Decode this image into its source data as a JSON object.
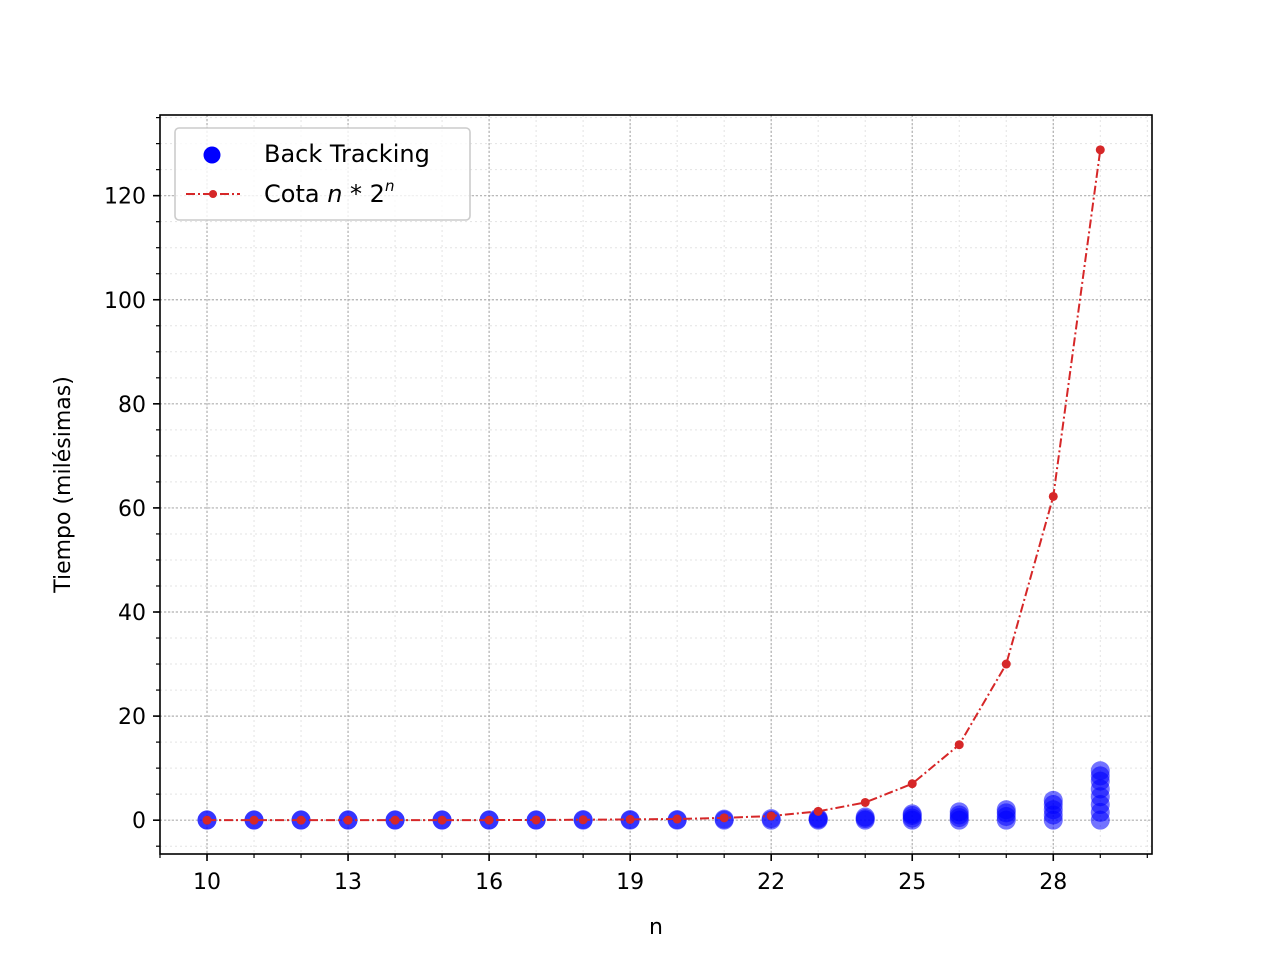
{
  "chart_data": {
    "type": "scatter",
    "xlabel": "n",
    "ylabel": "Tiempo (milésimas)",
    "xlim": [
      9,
      30.1
    ],
    "ylim": [
      -6.5,
      135.5
    ],
    "xticks": [
      10,
      13,
      16,
      19,
      22,
      25,
      28
    ],
    "xtick_labels": [
      "10",
      "13",
      "16",
      "19",
      "22",
      "25",
      "28"
    ],
    "yticks": [
      0,
      20,
      40,
      60,
      80,
      100,
      120
    ],
    "ytick_labels": [
      "0",
      "20",
      "40",
      "60",
      "80",
      "100",
      "120"
    ],
    "grid": true,
    "legend_position": "upper-left",
    "series": [
      {
        "name": "Back Tracking",
        "kind": "scatter",
        "color": "#0000ff",
        "points": [
          [
            10,
            0.0
          ],
          [
            10,
            0.05
          ],
          [
            11,
            0.0
          ],
          [
            11,
            0.05
          ],
          [
            12,
            0.0
          ],
          [
            12,
            0.05
          ],
          [
            13,
            0.0
          ],
          [
            13,
            0.05
          ],
          [
            14,
            0.0
          ],
          [
            14,
            0.05
          ],
          [
            15,
            0.0
          ],
          [
            15,
            0.05
          ],
          [
            16,
            0.0
          ],
          [
            16,
            0.05
          ],
          [
            17,
            0.0
          ],
          [
            17,
            0.05
          ],
          [
            18,
            0.0
          ],
          [
            18,
            0.1
          ],
          [
            19,
            0.0
          ],
          [
            19,
            0.1
          ],
          [
            20,
            0.0
          ],
          [
            20,
            0.1
          ],
          [
            21,
            0.0
          ],
          [
            21,
            0.2
          ],
          [
            22,
            0.0
          ],
          [
            22,
            0.3
          ],
          [
            23,
            0.0
          ],
          [
            23,
            0.2
          ],
          [
            23,
            0.4
          ],
          [
            24,
            0.0
          ],
          [
            24,
            0.3
          ],
          [
            24,
            0.6
          ],
          [
            25,
            0.0
          ],
          [
            25,
            0.4
          ],
          [
            25,
            0.9
          ],
          [
            25,
            1.2
          ],
          [
            26,
            0.0
          ],
          [
            26,
            0.5
          ],
          [
            26,
            1.0
          ],
          [
            26,
            1.6
          ],
          [
            27,
            0.0
          ],
          [
            27,
            0.7
          ],
          [
            27,
            1.4
          ],
          [
            27,
            2.0
          ],
          [
            28,
            0.0
          ],
          [
            28,
            1.0
          ],
          [
            28,
            2.0
          ],
          [
            28,
            3.0
          ],
          [
            28,
            3.8
          ],
          [
            29,
            0.0
          ],
          [
            29,
            1.5
          ],
          [
            29,
            3.0
          ],
          [
            29,
            4.5
          ],
          [
            29,
            6.0
          ],
          [
            29,
            7.5
          ],
          [
            29,
            8.5
          ],
          [
            29,
            9.5
          ]
        ]
      },
      {
        "name": "Cota n * 2^n",
        "legend_prefix": "Cota ",
        "kind": "line",
        "line_style": "dash-dot",
        "color": "#d62728",
        "x": [
          10,
          11,
          12,
          13,
          14,
          15,
          16,
          17,
          18,
          19,
          20,
          21,
          22,
          23,
          24,
          25,
          26,
          27,
          28,
          29
        ],
        "y": [
          0.0,
          0.0,
          0.0,
          0.0,
          0.0,
          0.01,
          0.02,
          0.04,
          0.08,
          0.15,
          0.22,
          0.45,
          0.8,
          1.7,
          3.4,
          7.0,
          14.5,
          30.0,
          62.2,
          128.8
        ]
      }
    ]
  }
}
